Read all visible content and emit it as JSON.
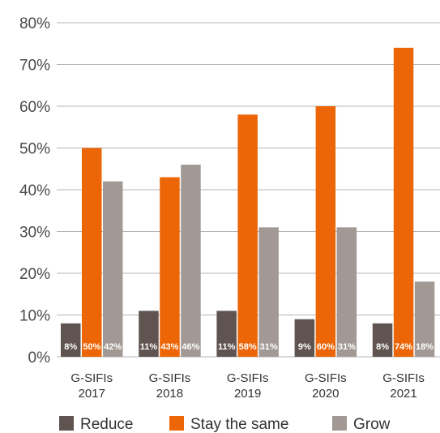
{
  "chart_data": {
    "type": "bar",
    "categories": [
      "G-SIFIs\n2017",
      "G-SIFIs\n2018",
      "G-SIFIs\n2019",
      "G-SIFIs\n2020",
      "G-SIFIs\n2021"
    ],
    "series": [
      {
        "name": "Reduce",
        "values": [
          8,
          11,
          11,
          9,
          8
        ],
        "labels": [
          "8%",
          "11%",
          "11%",
          "9%",
          "8%"
        ],
        "color": "#5f5450"
      },
      {
        "name": "Stay the same",
        "values": [
          50,
          43,
          58,
          60,
          74
        ],
        "labels": [
          "50%",
          "43%",
          "58%",
          "60%",
          "74%"
        ],
        "color": "#ec6608"
      },
      {
        "name": "Grow",
        "values": [
          42,
          46,
          31,
          31,
          18
        ],
        "labels": [
          "42%",
          "46%",
          "31%",
          "31%",
          "18%"
        ],
        "color": "#a29995"
      }
    ],
    "y_ticks": [
      "0%",
      "10%",
      "20%",
      "30%",
      "40%",
      "50%",
      "60%",
      "70%",
      "80%"
    ],
    "ylim": [
      0,
      80
    ],
    "grid": true,
    "legend_position": "bottom"
  }
}
